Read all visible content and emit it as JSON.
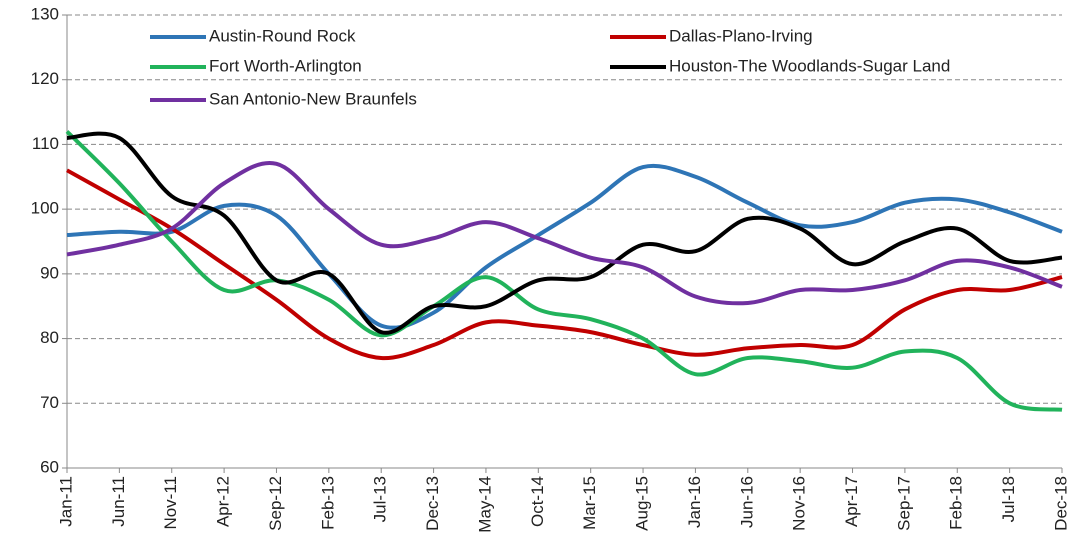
{
  "chart_data": {
    "type": "line",
    "categories": [
      "Jan-11",
      "Jun-11",
      "Nov-11",
      "Apr-12",
      "Sep-12",
      "Feb-13",
      "Jul-13",
      "Dec-13",
      "May-14",
      "Oct-14",
      "Mar-15",
      "Aug-15",
      "Jan-16",
      "Jun-16",
      "Nov-16",
      "Apr-17",
      "Sep-17",
      "Feb-18",
      "Jul-18",
      "Dec-18"
    ],
    "series": [
      {
        "name": "Austin-Round Rock",
        "color": "#2e75b6",
        "values": [
          96,
          96.5,
          96.5,
          100.5,
          99,
          90,
          82,
          84,
          91,
          96,
          101,
          106.5,
          105,
          101,
          97.5,
          98,
          101,
          101.5,
          99.5,
          96.5
        ]
      },
      {
        "name": "Dallas-Plano-Irving",
        "color": "#c00000",
        "values": [
          106,
          101.5,
          97,
          91.5,
          86,
          80,
          77,
          79,
          82.5,
          82,
          81,
          79,
          77.5,
          78.5,
          79,
          79,
          84.5,
          87.5,
          87.5,
          89.5
        ]
      },
      {
        "name": "Fort Worth-Arlington",
        "color": "#21b35b",
        "values": [
          112,
          104,
          95,
          87.5,
          89,
          86,
          80.5,
          85,
          89.5,
          84.5,
          83,
          80,
          74.5,
          77,
          76.5,
          75.5,
          78,
          77,
          70,
          69
        ]
      },
      {
        "name": "Houston-The Woodlands-Sugar Land",
        "color": "#000000",
        "values": [
          111,
          111,
          102,
          99,
          89,
          90,
          81,
          85,
          85,
          89,
          89.5,
          94.5,
          93.5,
          98.5,
          97,
          91.5,
          95,
          97,
          92,
          92.5
        ]
      },
      {
        "name": "San Antonio-New Braunfels",
        "color": "#7030a0",
        "values": [
          93,
          94.5,
          97,
          104,
          107,
          100,
          94.5,
          95.5,
          98,
          95.5,
          92.5,
          91,
          86.5,
          85.5,
          87.5,
          87.5,
          89,
          92,
          91,
          88
        ]
      }
    ],
    "ylim": [
      60,
      130
    ],
    "yticks": [
      60,
      70,
      80,
      90,
      100,
      110,
      120,
      130
    ],
    "grid": true,
    "smooth": true
  }
}
